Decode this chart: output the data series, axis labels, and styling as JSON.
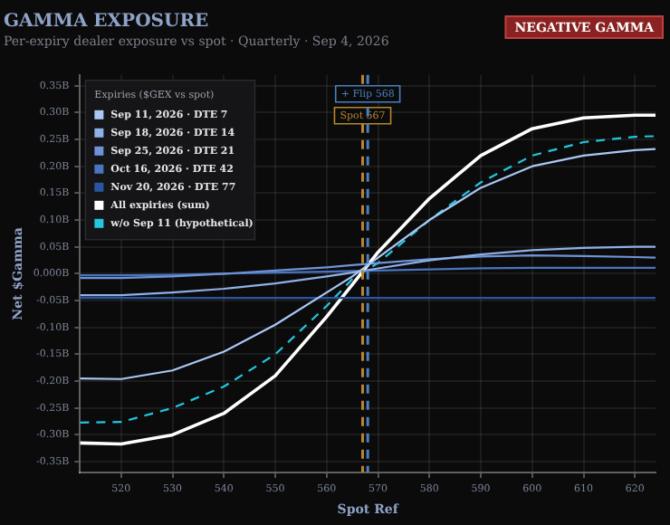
{
  "chart_data": {
    "type": "line",
    "title": "GAMMA EXPOSURE",
    "subtitle": "Per-expiry dealer exposure vs spot · Quarterly · Sep 4, 2026",
    "xlabel": "Spot Ref",
    "ylabel": "Net $Gamma",
    "legend_title": "Expiries ($GEX vs spot)",
    "legend": "top left",
    "grid": true,
    "marker": "none",
    "annotations": [
      "NEGATIVE GAMMA"
    ],
    "x": [
      512,
      520,
      530,
      540,
      550,
      560,
      565,
      570,
      580,
      590,
      600,
      610,
      620,
      624
    ],
    "xlim": [
      512,
      624
    ],
    "xticks": [
      520,
      530,
      540,
      550,
      560,
      570,
      580,
      590,
      600,
      610,
      620
    ],
    "ylim": [
      -0.37,
      0.37
    ],
    "yticks": [
      {
        "value": -0.35,
        "label": "-0.35B"
      },
      {
        "value": -0.3,
        "label": "-0.30B"
      },
      {
        "value": -0.25,
        "label": "-0.25B"
      },
      {
        "value": -0.2,
        "label": "-0.20B"
      },
      {
        "value": -0.15,
        "label": "-0.15B"
      },
      {
        "value": -0.1,
        "label": "-0.10B"
      },
      {
        "value": -0.05,
        "label": "-0.05B"
      },
      {
        "value": 0,
        "label": "0.000B"
      },
      {
        "value": 0.05,
        "label": "0.05B"
      },
      {
        "value": 0.1,
        "label": "0.10B"
      },
      {
        "value": 0.15,
        "label": "0.15B"
      },
      {
        "value": 0.2,
        "label": "0.20B"
      },
      {
        "value": 0.25,
        "label": "0.25B"
      },
      {
        "value": 0.3,
        "label": "0.30B"
      },
      {
        "value": 0.35,
        "label": "0.35B"
      }
    ],
    "ref_lines": [
      {
        "axis": "x",
        "value": 567,
        "label": "Spot 567",
        "color": "#b8862b",
        "line_style": "dashed"
      },
      {
        "axis": "x",
        "value": 568,
        "label": "+ Flip 568",
        "color": "#4a7fc0",
        "line_style": "dashed"
      }
    ],
    "series": [
      {
        "name": "Sep 11, 2026 · DTE 7",
        "color": "#a9c8f5",
        "line_style": "solid",
        "values": [
          -0.195,
          -0.196,
          -0.18,
          -0.145,
          -0.095,
          -0.035,
          -0.005,
          0.03,
          0.1,
          0.16,
          0.2,
          0.22,
          0.23,
          0.232
        ]
      },
      {
        "name": "Sep 18, 2026 · DTE 14",
        "color": "#8fb0e8",
        "line_style": "solid",
        "values": [
          -0.04,
          -0.04,
          -0.035,
          -0.028,
          -0.018,
          -0.005,
          0.002,
          0.01,
          0.025,
          0.036,
          0.044,
          0.048,
          0.05,
          0.05
        ]
      },
      {
        "name": "Sep 25, 2026 · DTE 21",
        "color": "#6f93d6",
        "line_style": "solid",
        "values": [
          -0.008,
          -0.008,
          -0.005,
          0,
          0.006,
          0.012,
          0.016,
          0.02,
          0.027,
          0.032,
          0.034,
          0.033,
          0.031,
          0.03
        ]
      },
      {
        "name": "Oct 16, 2026 · DTE 42",
        "color": "#4a75c0",
        "line_style": "solid",
        "values": [
          -0.003,
          -0.003,
          -0.002,
          0,
          0.002,
          0.004,
          0.005,
          0.006,
          0.008,
          0.01,
          0.011,
          0.011,
          0.011,
          0.011
        ]
      },
      {
        "name": "Nov 20, 2026 · DTE 77",
        "color": "#2a55a0",
        "line_style": "solid",
        "values": [
          -0.045,
          -0.045,
          -0.045,
          -0.045,
          -0.045,
          -0.045,
          -0.045,
          -0.045,
          -0.045,
          -0.045,
          -0.045,
          -0.045,
          -0.045,
          -0.045
        ]
      },
      {
        "name": "All expiries (sum)",
        "color": "#ffffff",
        "line_style": "solid",
        "values": [
          -0.315,
          -0.317,
          -0.3,
          -0.26,
          -0.19,
          -0.08,
          -0.02,
          0.04,
          0.14,
          0.22,
          0.27,
          0.29,
          0.295,
          0.295
        ]
      },
      {
        "name": "w/o Sep 11 (hypothetical)",
        "color": "#22c8e0",
        "line_style": "dashed",
        "values": [
          -0.277,
          -0.276,
          -0.25,
          -0.21,
          -0.15,
          -0.06,
          -0.01,
          0.02,
          0.1,
          0.17,
          0.22,
          0.245,
          0.255,
          0.256
        ]
      }
    ]
  }
}
